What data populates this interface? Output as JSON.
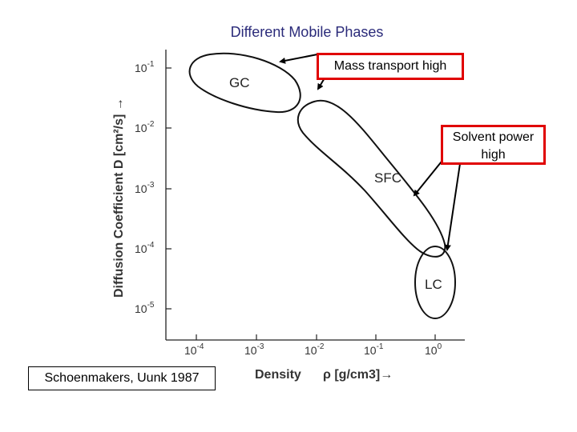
{
  "slide": {
    "title": "Different Mobile Phases",
    "callouts": {
      "mass_transport": "Mass transport high",
      "solvent_power_line1": "Solvent power",
      "solvent_power_line2": "high"
    },
    "citation": "Schoenmakers, Uunk 1987"
  },
  "figure": {
    "y_axis_label": "Diffusion Coefficient D [cm²/s] →",
    "x_axis_label_word": "Density",
    "x_axis_label_unit": "ρ [g/cm3]→",
    "y_ticks": [
      {
        "base": "10",
        "exp": "-1"
      },
      {
        "base": "10",
        "exp": "-2"
      },
      {
        "base": "10",
        "exp": "-3"
      },
      {
        "base": "10",
        "exp": "-4"
      },
      {
        "base": "10",
        "exp": "-5"
      }
    ],
    "x_ticks": [
      {
        "base": "10",
        "exp": "-4"
      },
      {
        "base": "10",
        "exp": "-3"
      },
      {
        "base": "10",
        "exp": "-2"
      },
      {
        "base": "10",
        "exp": "-1"
      },
      {
        "base": "10",
        "exp": "0"
      }
    ],
    "regions": {
      "gc": "GC",
      "sfc": "SFC",
      "lc": "LC"
    }
  }
}
